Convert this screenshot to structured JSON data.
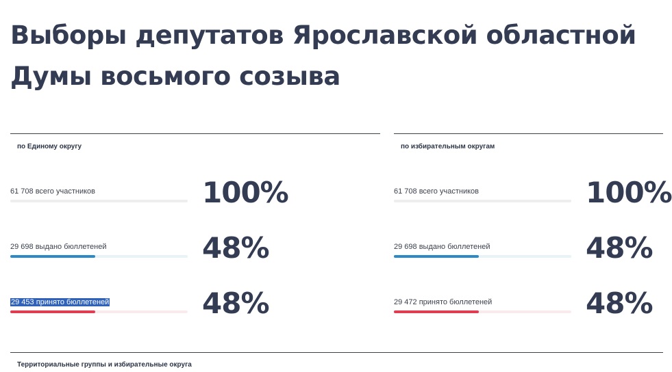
{
  "page": {
    "title": "Выборы депутатов Ярославской областной Думы восьмого созыва"
  },
  "panels": {
    "single": {
      "title": "по Единому округу",
      "rows": [
        {
          "label": "61 708 всего участников",
          "percent": "100%",
          "fill": 1.0,
          "color": "#eeeeee"
        },
        {
          "label": "29 698 выдано бюллетеней",
          "percent": "48%",
          "fill": 0.48,
          "color": "#2e8ac6"
        },
        {
          "label": "29 453 принято бюллетеней",
          "percent": "48%",
          "fill": 0.48,
          "color": "#e23c52"
        }
      ]
    },
    "districts": {
      "title": "по избирательным округам",
      "rows": [
        {
          "label": "61 708 всего участников",
          "percent": "100%",
          "fill": 1.0,
          "color": "#eeeeee"
        },
        {
          "label": "29 698 выдано бюллетеней",
          "percent": "48%",
          "fill": 0.48,
          "color": "#2e8ac6"
        },
        {
          "label": "29 472 принято бюллетеней",
          "percent": "48%",
          "fill": 0.48,
          "color": "#e23c52"
        }
      ]
    }
  },
  "bottom": {
    "title": "Территориальные группы и избирательные округа"
  }
}
